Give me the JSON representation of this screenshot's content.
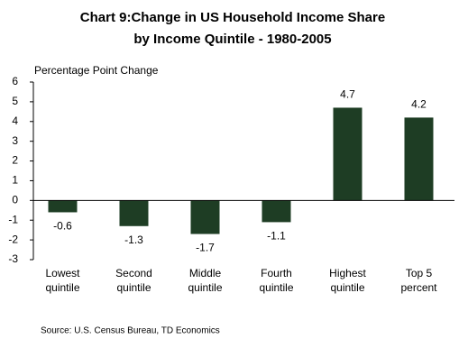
{
  "chart_data": {
    "type": "bar",
    "title": [
      "Chart 9:Change in US Household Income Share",
      "by Income Quintile - 1980-2005"
    ],
    "y_label": "Percentage Point Change",
    "categories": [
      [
        "Lowest",
        "quintile"
      ],
      [
        "Second",
        "quintile"
      ],
      [
        "Middle",
        "quintile"
      ],
      [
        "Fourth",
        "quintile"
      ],
      [
        "Highest",
        "quintile"
      ],
      [
        "Top 5",
        "percent"
      ]
    ],
    "values": [
      -0.6,
      -1.3,
      -1.7,
      -1.1,
      4.7,
      4.2
    ],
    "color": "#1e3d24",
    "ylim": [
      -3,
      6
    ],
    "yticks": [
      -3,
      -2,
      -1,
      0,
      1,
      2,
      3,
      4,
      5,
      6
    ],
    "grid": false,
    "source": "Source: U.S. Census Bureau, TD Economics"
  }
}
